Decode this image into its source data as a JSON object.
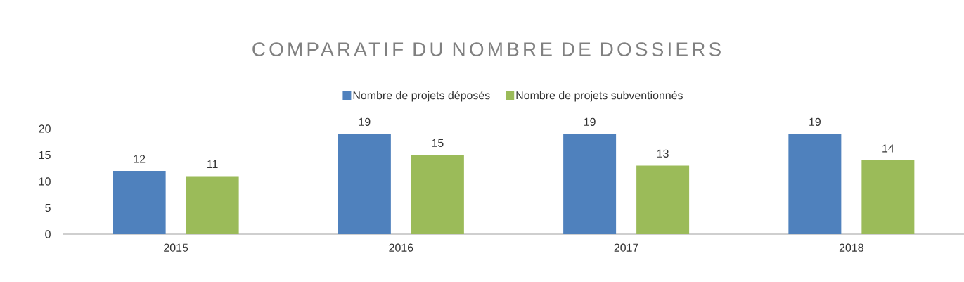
{
  "chart_data": {
    "type": "bar",
    "title": "COMPARATIF DU NOMBRE DE DOSSIERS",
    "categories": [
      "2015",
      "2016",
      "2017",
      "2018"
    ],
    "series": [
      {
        "name": "Nombre de projets déposés",
        "color": "#4f81bd",
        "values": [
          12,
          19,
          19,
          19
        ]
      },
      {
        "name": "Nombre de projets subventionnés",
        "color": "#9bbb59",
        "values": [
          11,
          15,
          13,
          14
        ]
      }
    ],
    "ylim": [
      0,
      20
    ],
    "yticks": [
      0,
      5,
      10,
      15,
      20
    ],
    "grid": false,
    "legend": "top",
    "data_labels": true
  }
}
